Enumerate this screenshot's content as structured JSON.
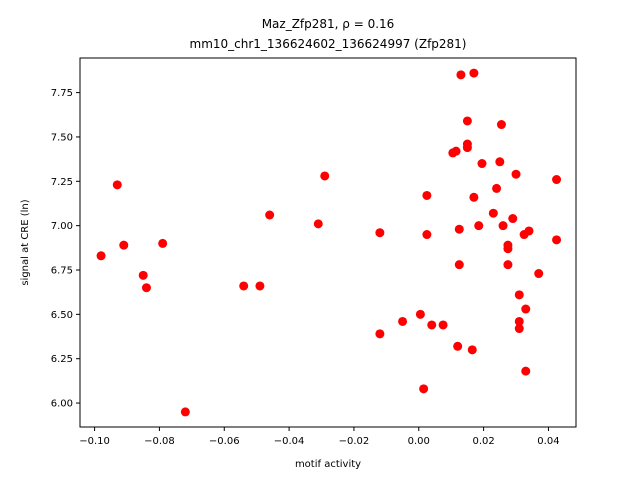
{
  "chart_data": {
    "type": "scatter",
    "title_line1": "Maz_Zfp281, ρ = 0.16",
    "title_line2": "mm10_chr1_136624602_136624997 (Zfp281)",
    "xlabel": "motif activity",
    "ylabel": "signal at CRE (ln)",
    "xlim": [
      -0.1045,
      0.0485
    ],
    "ylim": [
      5.865,
      7.945
    ],
    "xticks": [
      -0.1,
      -0.08,
      -0.06,
      -0.04,
      -0.02,
      0.0,
      0.02,
      0.04
    ],
    "xtick_labels": [
      "−0.10",
      "−0.08",
      "−0.06",
      "−0.04",
      "−0.02",
      "0.00",
      "0.02",
      "0.04"
    ],
    "yticks": [
      6.0,
      6.25,
      6.5,
      6.75,
      7.0,
      7.25,
      7.5,
      7.75
    ],
    "ytick_labels": [
      "6.00",
      "6.25",
      "6.50",
      "6.75",
      "7.00",
      "7.25",
      "7.50",
      "7.75"
    ],
    "grid": false,
    "marker_color": "#ff0000",
    "points": [
      {
        "x": -0.098,
        "y": 6.83
      },
      {
        "x": -0.093,
        "y": 7.23
      },
      {
        "x": -0.091,
        "y": 6.89
      },
      {
        "x": -0.085,
        "y": 6.72
      },
      {
        "x": -0.084,
        "y": 6.65
      },
      {
        "x": -0.079,
        "y": 6.9
      },
      {
        "x": -0.072,
        "y": 5.95
      },
      {
        "x": -0.054,
        "y": 6.66
      },
      {
        "x": -0.049,
        "y": 6.66
      },
      {
        "x": -0.046,
        "y": 7.06
      },
      {
        "x": -0.031,
        "y": 7.01
      },
      {
        "x": -0.029,
        "y": 7.28
      },
      {
        "x": -0.012,
        "y": 6.96
      },
      {
        "x": -0.012,
        "y": 6.39
      },
      {
        "x": -0.005,
        "y": 6.46
      },
      {
        "x": 0.0005,
        "y": 6.5
      },
      {
        "x": 0.0015,
        "y": 6.08
      },
      {
        "x": 0.0025,
        "y": 7.17
      },
      {
        "x": 0.0025,
        "y": 6.95
      },
      {
        "x": 0.004,
        "y": 6.44
      },
      {
        "x": 0.0075,
        "y": 6.44
      },
      {
        "x": 0.0105,
        "y": 7.41
      },
      {
        "x": 0.0115,
        "y": 7.42
      },
      {
        "x": 0.012,
        "y": 6.32
      },
      {
        "x": 0.0125,
        "y": 6.98
      },
      {
        "x": 0.0125,
        "y": 6.78
      },
      {
        "x": 0.013,
        "y": 7.85
      },
      {
        "x": 0.015,
        "y": 7.59
      },
      {
        "x": 0.015,
        "y": 7.46
      },
      {
        "x": 0.015,
        "y": 7.44
      },
      {
        "x": 0.0165,
        "y": 6.3
      },
      {
        "x": 0.017,
        "y": 7.86
      },
      {
        "x": 0.017,
        "y": 7.16
      },
      {
        "x": 0.0185,
        "y": 7.0
      },
      {
        "x": 0.0195,
        "y": 7.35
      },
      {
        "x": 0.023,
        "y": 7.07
      },
      {
        "x": 0.024,
        "y": 7.21
      },
      {
        "x": 0.025,
        "y": 7.36
      },
      {
        "x": 0.0255,
        "y": 7.57
      },
      {
        "x": 0.026,
        "y": 7.0
      },
      {
        "x": 0.0275,
        "y": 6.89
      },
      {
        "x": 0.0275,
        "y": 6.87
      },
      {
        "x": 0.0275,
        "y": 6.78
      },
      {
        "x": 0.029,
        "y": 7.04
      },
      {
        "x": 0.03,
        "y": 7.29
      },
      {
        "x": 0.031,
        "y": 6.61
      },
      {
        "x": 0.031,
        "y": 6.46
      },
      {
        "x": 0.031,
        "y": 6.42
      },
      {
        "x": 0.0325,
        "y": 6.95
      },
      {
        "x": 0.033,
        "y": 6.53
      },
      {
        "x": 0.033,
        "y": 6.18
      },
      {
        "x": 0.034,
        "y": 6.97
      },
      {
        "x": 0.037,
        "y": 6.73
      },
      {
        "x": 0.0425,
        "y": 7.26
      },
      {
        "x": 0.0425,
        "y": 6.92
      }
    ]
  }
}
